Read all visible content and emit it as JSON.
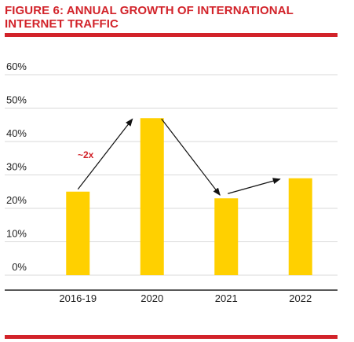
{
  "header": {
    "title": "FIGURE 6: ANNUAL GROWTH OF INTERNATIONAL INTERNET TRAFFIC"
  },
  "colors": {
    "accent": "#d2232a",
    "bar": "#ffd000",
    "grid": "#d9d9d9",
    "axis": "#222222"
  },
  "chart_data": {
    "type": "bar",
    "title": "FIGURE 6: ANNUAL GROWTH OF INTERNATIONAL INTERNET TRAFFIC",
    "categories": [
      "2016-19",
      "2020",
      "2021",
      "2022"
    ],
    "values": [
      25,
      47,
      23,
      29
    ],
    "ylim": [
      0,
      60
    ],
    "yticks": [
      0,
      10,
      20,
      30,
      40,
      50,
      60
    ],
    "ytick_labels": [
      "0%",
      "10%",
      "20%",
      "30%",
      "40%",
      "50%",
      "60%"
    ],
    "xlabel": "",
    "ylabel": "",
    "grid": true,
    "annotations": [
      {
        "type": "arrow",
        "from_category": "2016-19",
        "to_category": "2020",
        "label": "~2x"
      },
      {
        "type": "arrow",
        "from_category": "2020",
        "to_category": "2021",
        "label": ""
      },
      {
        "type": "arrow",
        "from_category": "2021",
        "to_category": "2022",
        "label": ""
      }
    ]
  }
}
